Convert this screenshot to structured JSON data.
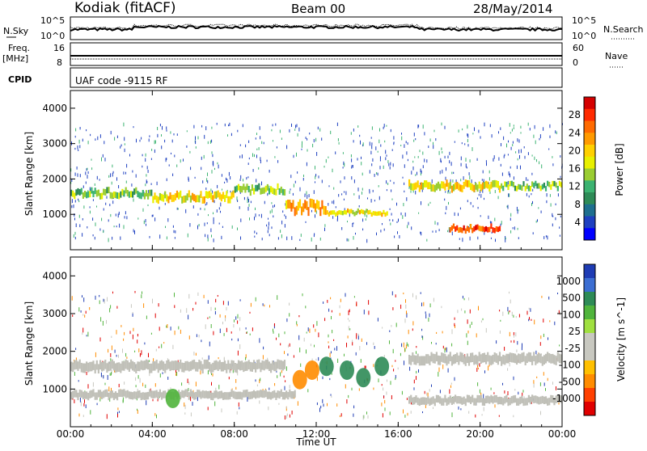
{
  "header": {
    "station": "Kodiak (fitACF)",
    "beam": "Beam 00",
    "date": "28/May/2014"
  },
  "top_panel": {
    "left_label": "N.Sky",
    "right_label": "N.Search",
    "left_ticks": [
      "10^5",
      "10^0"
    ],
    "right_ticks": [
      "10^5",
      "10^0"
    ]
  },
  "freq_panel": {
    "left_label_1": "Freq.",
    "left_label_2": "[MHz]",
    "right_label": "Nave",
    "left_ticks": [
      "16",
      "8"
    ],
    "right_ticks": [
      "60",
      "0"
    ]
  },
  "cpid_panel": {
    "label": "CPID",
    "code_text": "UAF code -9115 RF"
  },
  "chart_data": [
    {
      "type": "heatmap",
      "title": "",
      "xlabel": "",
      "ylabel": "Slant Range [km]",
      "colorbar_label": "Power [dB]",
      "colorbar_ticks": [
        "28",
        "24",
        "20",
        "16",
        "12",
        "8",
        "4"
      ],
      "colorbar_colors": [
        "#d40000",
        "#ff2a00",
        "#ff6a00",
        "#ff9a00",
        "#ffd000",
        "#e8f000",
        "#9acd32",
        "#3cb371",
        "#2e8b57",
        "#1e6f8f",
        "#1e40c0",
        "#0000ff"
      ],
      "y_ticks": [
        "4000",
        "3000",
        "2000",
        "1000"
      ],
      "ylim": [
        0,
        4500
      ],
      "xlim_hours": [
        0,
        24
      ],
      "bands": [
        {
          "t_start": 0.0,
          "t_end": 4.0,
          "range_km": 1600,
          "width_km": 180,
          "power_db": 12
        },
        {
          "t_start": 4.0,
          "t_end": 8.0,
          "range_km": 1500,
          "width_km": 200,
          "power_db": 16
        },
        {
          "t_start": 8.0,
          "t_end": 10.5,
          "range_km": 1700,
          "width_km": 180,
          "power_db": 12
        },
        {
          "t_start": 10.5,
          "t_end": 12.5,
          "range_km": 1200,
          "width_km": 250,
          "power_db": 20
        },
        {
          "t_start": 12.5,
          "t_end": 15.5,
          "range_km": 1050,
          "width_km": 120,
          "power_db": 16
        },
        {
          "t_start": 16.5,
          "t_end": 21.0,
          "range_km": 1800,
          "width_km": 200,
          "power_db": 16
        },
        {
          "t_start": 21.0,
          "t_end": 24.0,
          "range_km": 1800,
          "width_km": 150,
          "power_db": 12
        },
        {
          "t_start": 18.5,
          "t_end": 21.0,
          "range_km": 600,
          "width_km": 150,
          "power_db": 24
        }
      ]
    },
    {
      "type": "heatmap",
      "title": "",
      "xlabel": "Time UT",
      "ylabel": "Slant Range [km]",
      "colorbar_label": "Velocity [m s^-1]",
      "colorbar_ticks": [
        "1000",
        "500",
        "100",
        "25",
        "-25",
        "-100",
        "-500",
        "-1000"
      ],
      "colorbar_colors": [
        "#1e3cb4",
        "#3c6ed2",
        "#2e8b57",
        "#50b43c",
        "#a0e040",
        "#c8c8c0",
        "#c8c8c0",
        "#ffc000",
        "#ff8c00",
        "#ff4000",
        "#e00000"
      ],
      "y_ticks": [
        "4000",
        "3000",
        "2000",
        "1000"
      ],
      "x_ticks": [
        "00:00",
        "04:00",
        "08:00",
        "12:00",
        "16:00",
        "20:00",
        "00:00"
      ],
      "ylim": [
        0,
        4500
      ],
      "xlim_hours": [
        0,
        24
      ],
      "ground_scatter_bands": [
        {
          "t_start": 0.0,
          "t_end": 10.5,
          "range_km": 1600,
          "width_km": 250
        },
        {
          "t_start": 16.5,
          "t_end": 24.0,
          "range_km": 1800,
          "width_km": 250
        },
        {
          "t_start": 0.0,
          "t_end": 11.0,
          "range_km": 850,
          "width_km": 200
        },
        {
          "t_start": 16.5,
          "t_end": 24.0,
          "range_km": 700,
          "width_km": 200
        }
      ],
      "ionospheric_patches": [
        {
          "t": 11.2,
          "range_km": 1250,
          "velocity": -150
        },
        {
          "t": 11.8,
          "range_km": 1500,
          "velocity": -300
        },
        {
          "t": 12.5,
          "range_km": 1600,
          "velocity": 150
        },
        {
          "t": 13.5,
          "range_km": 1500,
          "velocity": 200
        },
        {
          "t": 14.3,
          "range_km": 1300,
          "velocity": 120
        },
        {
          "t": 15.2,
          "range_km": 1600,
          "velocity": 300
        },
        {
          "t": 5.0,
          "range_km": 750,
          "velocity": 80
        }
      ]
    }
  ]
}
